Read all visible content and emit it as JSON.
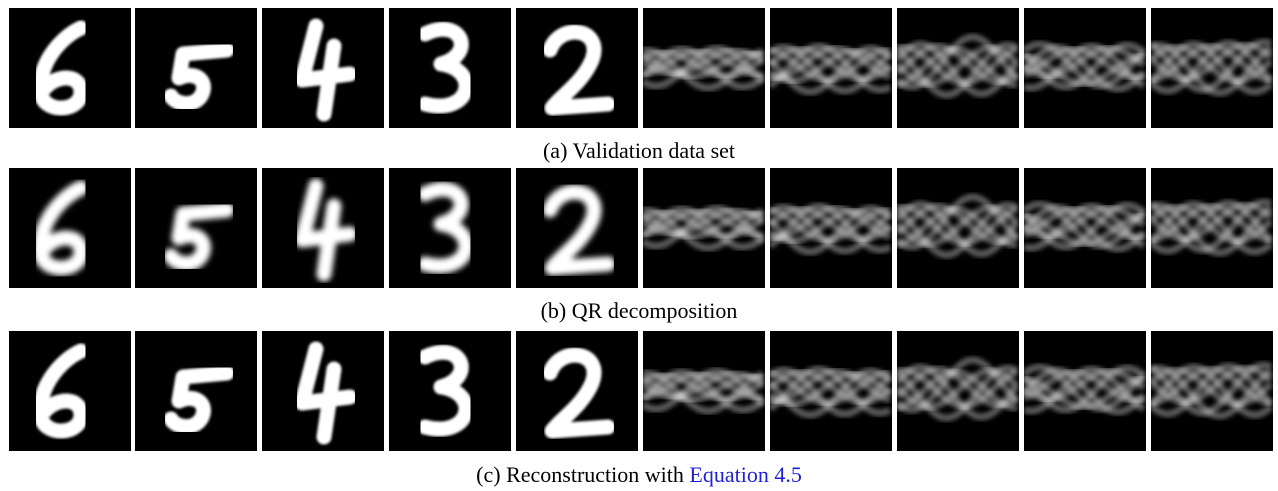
{
  "captions": [
    {
      "text": "(a) Validation data set"
    },
    {
      "text": "(b) QR decomposition"
    },
    {
      "text": "(c) Reconstruction with ",
      "link": "Equation 4.5"
    }
  ]
}
